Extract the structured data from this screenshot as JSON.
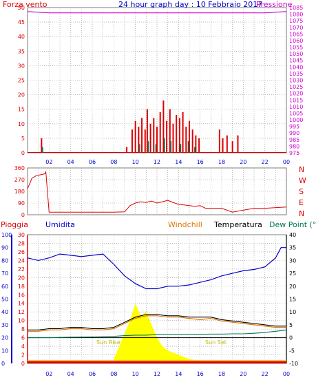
{
  "title": "24 hour graph day : 10 Febbraio 2017",
  "colors": {
    "wind": "#dd0000",
    "pressure": "#cc00cc",
    "humidity": "#0000cc",
    "windchill": "#dd7700",
    "temperature": "#000000",
    "dewpoint": "#007755",
    "rain": "#dd0000",
    "sun": "#ffff00",
    "grid": "#9a9a9a",
    "axis_red": "#dd0000",
    "axis_blue": "#0000cc"
  },
  "chart_data": [
    {
      "type": "bar",
      "name": "wind-pressure",
      "labels": {
        "left": "Forza vento",
        "right": "Pressione"
      },
      "x_ticks": [
        "02",
        "04",
        "06",
        "08",
        "10",
        "12",
        "14",
        "16",
        "18",
        "20",
        "22",
        "00"
      ],
      "left_axis": {
        "ylim": [
          0,
          50
        ],
        "ticks": [
          0,
          5,
          10,
          15,
          20,
          25,
          30,
          35,
          40,
          45,
          50
        ]
      },
      "right_axis": {
        "ylim": [
          975,
          1085
        ],
        "ticks": [
          975,
          980,
          985,
          990,
          995,
          1000,
          1005,
          1010,
          1015,
          1020,
          1025,
          1030,
          1035,
          1040,
          1045,
          1050,
          1055,
          1060,
          1065,
          1070,
          1075,
          1080,
          1085
        ]
      },
      "pressure_line": {
        "x": [
          0,
          2,
          4,
          6,
          8,
          10,
          12,
          14,
          16,
          18,
          20,
          22,
          24
        ],
        "y": [
          1082,
          1081,
          1081,
          1081,
          1081,
          1081,
          1081,
          1081,
          1081,
          1081,
          1081,
          1081,
          1082
        ]
      },
      "wind_gusts": [
        {
          "x": 1.3,
          "v": 5
        },
        {
          "x": 9.2,
          "v": 2
        },
        {
          "x": 9.7,
          "v": 8
        },
        {
          "x": 10.0,
          "v": 11
        },
        {
          "x": 10.3,
          "v": 9
        },
        {
          "x": 10.6,
          "v": 12
        },
        {
          "x": 10.9,
          "v": 8
        },
        {
          "x": 11.1,
          "v": 15
        },
        {
          "x": 11.4,
          "v": 10
        },
        {
          "x": 11.7,
          "v": 12
        },
        {
          "x": 12.0,
          "v": 9
        },
        {
          "x": 12.3,
          "v": 14
        },
        {
          "x": 12.6,
          "v": 18
        },
        {
          "x": 12.9,
          "v": 11
        },
        {
          "x": 13.2,
          "v": 15
        },
        {
          "x": 13.5,
          "v": 10
        },
        {
          "x": 13.8,
          "v": 13
        },
        {
          "x": 14.1,
          "v": 12
        },
        {
          "x": 14.4,
          "v": 14
        },
        {
          "x": 14.7,
          "v": 9
        },
        {
          "x": 15.0,
          "v": 11
        },
        {
          "x": 15.3,
          "v": 8
        },
        {
          "x": 15.6,
          "v": 6
        },
        {
          "x": 15.9,
          "v": 5
        },
        {
          "x": 17.8,
          "v": 8
        },
        {
          "x": 18.1,
          "v": 5
        },
        {
          "x": 18.5,
          "v": 6
        },
        {
          "x": 19.0,
          "v": 4
        },
        {
          "x": 19.5,
          "v": 6
        }
      ],
      "wind_avg": [
        {
          "x": 1.4,
          "v": 2
        },
        {
          "x": 10.4,
          "v": 3
        },
        {
          "x": 11.2,
          "v": 4
        },
        {
          "x": 11.9,
          "v": 3
        },
        {
          "x": 12.7,
          "v": 5
        },
        {
          "x": 13.3,
          "v": 4
        },
        {
          "x": 14.2,
          "v": 3
        },
        {
          "x": 14.9,
          "v": 4
        },
        {
          "x": 15.5,
          "v": 2
        }
      ]
    },
    {
      "type": "line",
      "name": "wind-direction",
      "labels": {
        "right": [
          "N",
          "W",
          "S",
          "E",
          "N"
        ]
      },
      "ylim": [
        0,
        360
      ],
      "ticks": [
        0,
        90,
        180,
        270,
        360
      ],
      "x": [
        0,
        0.4,
        0.8,
        1.6,
        1.7,
        2.0,
        4.0,
        6.0,
        8.0,
        9.0,
        9.5,
        10.0,
        10.5,
        11.0,
        11.5,
        12.0,
        12.5,
        13.0,
        13.5,
        14.0,
        14.5,
        15.0,
        15.5,
        16.0,
        16.5,
        17.0,
        18.0,
        19.0,
        20.0,
        21.0,
        22.0,
        24.0
      ],
      "y": [
        200,
        280,
        300,
        315,
        330,
        20,
        20,
        20,
        20,
        22,
        70,
        90,
        100,
        95,
        105,
        90,
        100,
        110,
        95,
        80,
        75,
        70,
        65,
        70,
        50,
        50,
        50,
        20,
        35,
        50,
        50,
        60
      ]
    },
    {
      "type": "line",
      "name": "temp-humidity-rain",
      "labels": {
        "rain": "Pioggia",
        "humidity": "Umidita",
        "windchill": "Windchill",
        "temperature": "Temperatura",
        "dewpoint": "Dew Point (°C"
      },
      "x_ticks": [
        "02",
        "04",
        "06",
        "08",
        "10",
        "12",
        "14",
        "16",
        "18",
        "20",
        "22",
        "00"
      ],
      "sunrise_label": "Sun Rise",
      "sunset_label": "Sun Set",
      "humidity_axis": {
        "ylim": [
          0,
          100
        ],
        "ticks": [
          0,
          10,
          20,
          30,
          40,
          50,
          60,
          70,
          80,
          90,
          100
        ]
      },
      "rain_axis": {
        "ylim": [
          0,
          30
        ],
        "ticks": [
          0,
          2,
          4,
          6,
          8,
          10,
          12,
          14,
          16,
          18,
          20,
          22,
          24,
          26,
          28,
          30
        ]
      },
      "temp_axis": {
        "ylim": [
          -10,
          40
        ],
        "ticks": [
          -10,
          -5,
          0,
          5,
          10,
          15,
          20,
          25,
          30,
          35,
          40
        ]
      },
      "humidity": {
        "x": [
          0,
          1,
          2,
          3,
          4,
          5,
          6,
          7,
          8,
          9,
          10,
          11,
          12,
          13,
          14,
          15,
          16,
          17,
          18,
          19,
          20,
          21,
          22,
          23,
          23.5,
          24
        ],
        "y": [
          82,
          80,
          82,
          85,
          84,
          83,
          84,
          85,
          77,
          68,
          62,
          58,
          58,
          60,
          60,
          61,
          63,
          65,
          68,
          70,
          72,
          73,
          75,
          82,
          90,
          90
        ]
      },
      "temperature": {
        "x": [
          0,
          1,
          2,
          3,
          4,
          5,
          6,
          7,
          8,
          9,
          10,
          11,
          12,
          13,
          14,
          15,
          16,
          17,
          18,
          19,
          20,
          21,
          22,
          23,
          24
        ],
        "y": [
          3.0,
          3.0,
          3.5,
          3.5,
          4.0,
          4.0,
          3.5,
          3.5,
          4.0,
          6.0,
          8.0,
          9.0,
          9.0,
          8.5,
          8.5,
          8.0,
          8.0,
          8.0,
          7.0,
          6.5,
          6.0,
          5.5,
          5.0,
          4.5,
          4.5
        ]
      },
      "windchill": {
        "x": [
          0,
          1,
          2,
          3,
          4,
          5,
          6,
          7,
          8,
          9,
          10,
          11,
          12,
          13,
          14,
          15,
          16,
          17,
          18,
          19,
          20,
          21,
          22,
          23,
          24
        ],
        "y": [
          2.5,
          2.5,
          3.0,
          3.0,
          3.5,
          3.5,
          3.0,
          3.0,
          3.5,
          5.5,
          7.5,
          8.5,
          8.5,
          8.0,
          8.0,
          7.5,
          7.0,
          7.5,
          6.5,
          6.0,
          5.5,
          5.0,
          4.5,
          4.0,
          4.0
        ]
      },
      "dewpoint": {
        "x": [
          0,
          2,
          4,
          6,
          8,
          9,
          10,
          11,
          12,
          13,
          14,
          15,
          16,
          17,
          18,
          19,
          20,
          21,
          22,
          23,
          24
        ],
        "y": [
          0,
          0,
          0.2,
          0.3,
          0.5,
          0.8,
          1.0,
          1.0,
          1.2,
          1.2,
          1.2,
          1.3,
          1.3,
          1.4,
          1.4,
          1.5,
          1.5,
          1.7,
          2.0,
          2.5,
          3.0
        ]
      },
      "zero_line": 0,
      "sun": {
        "x": [
          8.0,
          8.5,
          9.0,
          9.5,
          10.0,
          10.5,
          11.0,
          11.5,
          12.0,
          12.5,
          13.0,
          13.5,
          14.0,
          14.5,
          15.0,
          15.5,
          16.0,
          16.5
        ],
        "y": [
          1,
          4,
          7,
          10,
          14,
          11,
          12,
          9,
          6,
          4,
          3,
          2.5,
          2,
          1.5,
          1,
          0.8,
          0.5,
          0.2
        ]
      }
    }
  ]
}
